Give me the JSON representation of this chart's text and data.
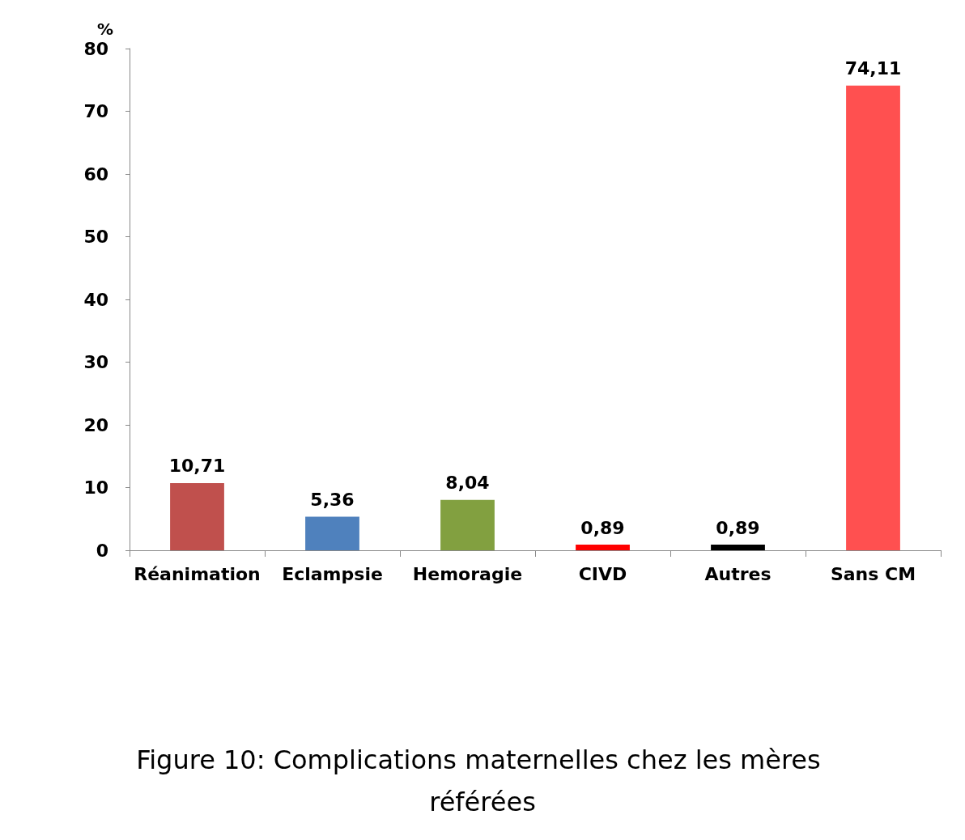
{
  "chart_data": {
    "type": "bar",
    "title": "Figure 10: Complications maternelles chez les mères référées",
    "ylabel": "%",
    "categories": [
      "Réanimation",
      "Eclampsie",
      "Hemoragie",
      "CIVD",
      "Autres",
      "Sans CM"
    ],
    "values": [
      10.71,
      5.36,
      8.04,
      0.89,
      0.89,
      74.11
    ],
    "colors": [
      "#c0504d",
      "#4f81bd",
      "#82a040",
      "#ff0000",
      "#000000",
      "#ff5050"
    ],
    "value_labels": [
      "10,71",
      "5,36",
      "8,04",
      "0,89",
      "0,89",
      "74,11"
    ],
    "ylim": [
      0,
      80
    ],
    "yticks": [
      0,
      10,
      20,
      30,
      40,
      50,
      60,
      70,
      80
    ],
    "grid": false
  }
}
